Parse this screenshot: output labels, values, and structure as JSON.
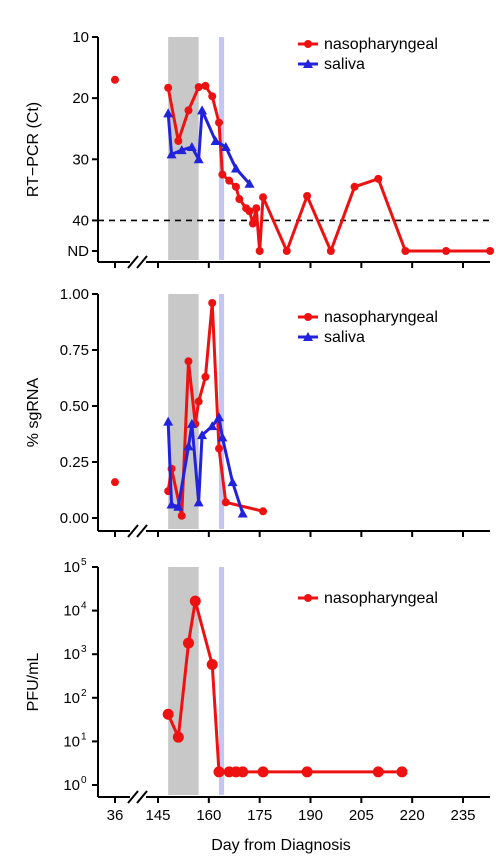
{
  "figure": {
    "xlabel": "Day from Diagnosis",
    "x_ticks": [
      36,
      145,
      160,
      175,
      190,
      205,
      220,
      235
    ],
    "shaded_gray": [
      148,
      157
    ],
    "shaded_lavender": [
      163,
      164.5
    ],
    "colors": {
      "nasopharyngeal": "#ee1111",
      "saliva": "#2222dd",
      "gray_band": "#c8c8c8",
      "lavender_band": "#c6c6f4"
    }
  },
  "chart_data": [
    {
      "type": "line",
      "ylabel": "RT−PCR (Ct)",
      "y_tick_labels": [
        "10",
        "20",
        "30",
        "40",
        "ND"
      ],
      "y_tick_values": [
        10,
        20,
        30,
        40,
        45
      ],
      "ylim": [
        10,
        45
      ],
      "y_reversed": true,
      "threshold_line": 40,
      "legend": [
        "nasopharyngeal",
        "saliva"
      ],
      "legend_position": "top-right",
      "series": [
        {
          "name": "nasopharyngeal",
          "marker": "circle",
          "points": [
            [
              36,
              17
            ],
            [
              148,
              18.3
            ],
            [
              151,
              27
            ],
            [
              154,
              22
            ],
            [
              157,
              18.2
            ],
            [
              159,
              18
            ],
            [
              161,
              19.7
            ],
            [
              163,
              24
            ],
            [
              164,
              32.5
            ],
            [
              166,
              33.5
            ],
            [
              168,
              34.5
            ],
            [
              169,
              36.5
            ],
            [
              171,
              38
            ],
            [
              172,
              38.5
            ],
            [
              173,
              40.5
            ],
            [
              174,
              38
            ],
            [
              175,
              45
            ],
            [
              176,
              36.2
            ],
            [
              183,
              45
            ],
            [
              189,
              36
            ],
            [
              196,
              45
            ],
            [
              203,
              34.5
            ],
            [
              210,
              33.2
            ],
            [
              218,
              45
            ],
            [
              230,
              45
            ],
            [
              243,
              45
            ]
          ]
        },
        {
          "name": "saliva",
          "marker": "triangle",
          "points": [
            [
              148,
              22.5
            ],
            [
              149,
              29.2
            ],
            [
              152,
              28.5
            ],
            [
              155,
              28
            ],
            [
              157,
              30
            ],
            [
              158,
              22
            ],
            [
              162,
              27
            ],
            [
              165,
              28
            ],
            [
              168,
              31.5
            ],
            [
              172,
              34
            ]
          ]
        }
      ]
    },
    {
      "type": "line",
      "ylabel": "% sgRNA",
      "y_tick_labels": [
        "0.00",
        "0.25",
        "0.50",
        "0.75",
        "1.00"
      ],
      "y_tick_values": [
        0,
        0.25,
        0.5,
        0.75,
        1.0
      ],
      "ylim": [
        0,
        1.0
      ],
      "legend": [
        "nasopharyngeal",
        "saliva"
      ],
      "legend_position": "top-right",
      "series": [
        {
          "name": "nasopharyngeal",
          "marker": "circle",
          "points": [
            [
              36,
              0.16
            ],
            [
              148,
              0.12
            ],
            [
              149,
              0.22
            ],
            [
              152,
              0.01
            ],
            [
              154,
              0.7
            ],
            [
              156,
              0.42
            ],
            [
              157,
              0.52
            ],
            [
              159,
              0.63
            ],
            [
              161,
              0.96
            ],
            [
              163,
              0.31
            ],
            [
              165,
              0.07
            ],
            [
              176,
              0.03
            ]
          ]
        },
        {
          "name": "saliva",
          "marker": "triangle",
          "points": [
            [
              148,
              0.43
            ],
            [
              149,
              0.06
            ],
            [
              151,
              0.05
            ],
            [
              154,
              0.32
            ],
            [
              155,
              0.42
            ],
            [
              157,
              0.07
            ],
            [
              158,
              0.37
            ],
            [
              161,
              0.41
            ],
            [
              163,
              0.45
            ],
            [
              164,
              0.36
            ],
            [
              167,
              0.16
            ],
            [
              170,
              0.02
            ]
          ]
        }
      ]
    },
    {
      "type": "line",
      "ylabel": "PFU/mL",
      "y_scale": "log10",
      "y_tick_labels": [
        "10",
        "10",
        "10",
        "10",
        "10",
        "10"
      ],
      "y_tick_exponents": [
        "0",
        "1",
        "2",
        "3",
        "4",
        "5"
      ],
      "y_tick_values": [
        1,
        10,
        100,
        1000,
        10000,
        100000
      ],
      "ylim": [
        1,
        100000
      ],
      "legend": [
        "nasopharyngeal"
      ],
      "legend_position": "top-right",
      "series": [
        {
          "name": "nasopharyngeal",
          "marker": "circle",
          "points": [
            [
              148,
              42
            ],
            [
              151,
              12.5
            ],
            [
              154,
              1800
            ],
            [
              156,
              16500
            ],
            [
              161,
              580
            ],
            [
              163,
              2
            ],
            [
              166,
              2
            ],
            [
              168,
              2
            ],
            [
              170,
              2
            ],
            [
              176,
              2
            ],
            [
              189,
              2
            ],
            [
              210,
              2
            ],
            [
              217,
              2
            ]
          ]
        }
      ]
    }
  ]
}
